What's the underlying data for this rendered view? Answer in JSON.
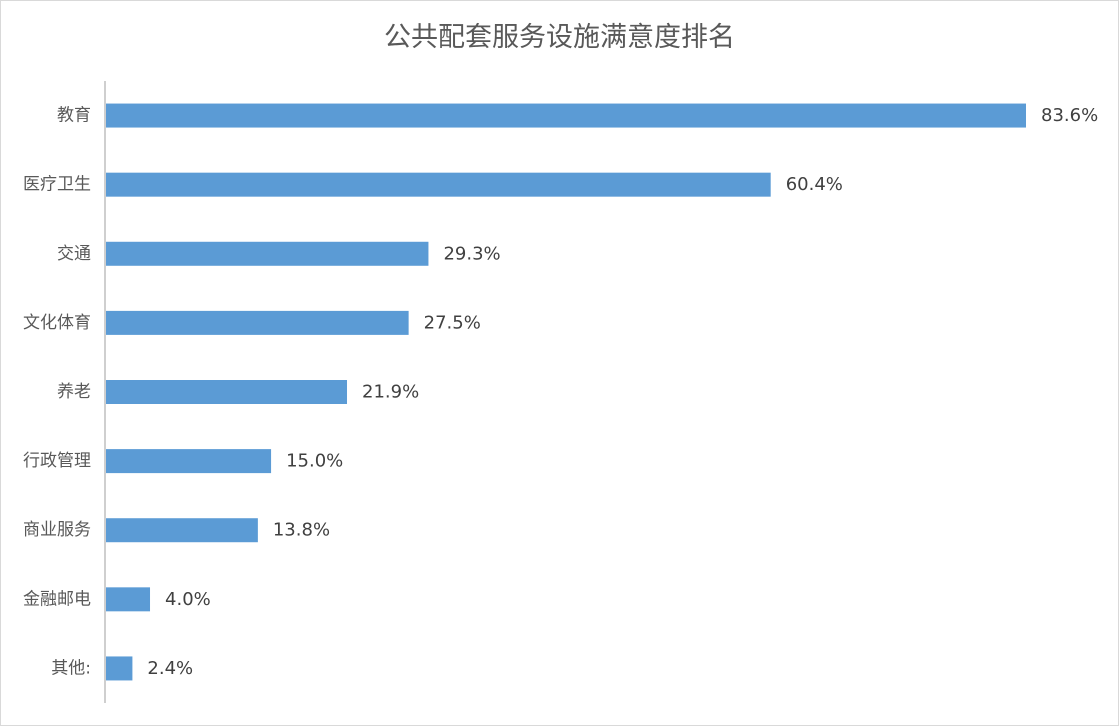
{
  "chart_data": {
    "type": "bar",
    "orientation": "horizontal",
    "title": "公共配套服务设施满意度排名",
    "categories": [
      "教育",
      "医疗卫生",
      "交通",
      "文化体育",
      "养老",
      "行政管理",
      "商业服务",
      "金融邮电",
      "其他:"
    ],
    "values": [
      83.6,
      60.4,
      29.3,
      27.5,
      21.9,
      15.0,
      13.8,
      4.0,
      2.4
    ],
    "value_labels": [
      "83.6%",
      "60.4%",
      "29.3%",
      "27.5%",
      "21.9%",
      "15.0%",
      "13.8%",
      "4.0%",
      "2.4%"
    ],
    "xlabel": "",
    "ylabel": "",
    "xlim": [
      0,
      83.6
    ],
    "grid": false,
    "legend": "none",
    "bar_color": "#5B9BD5",
    "axis_color": "#BFBFBF"
  }
}
